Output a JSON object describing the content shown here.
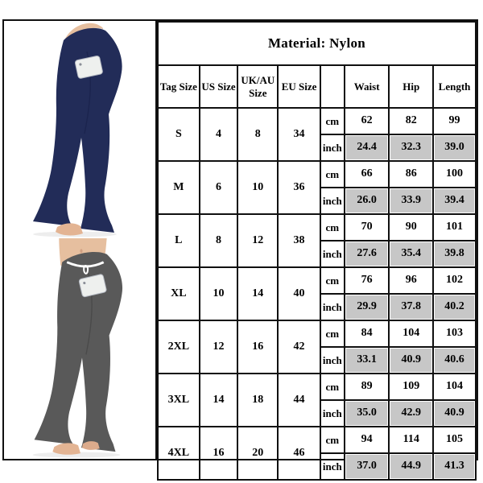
{
  "size_chart": {
    "material_label": "Material: Nylon",
    "columns": [
      "Tag Size",
      "US Size",
      "UK/AU Size",
      "EU Size",
      "",
      "Waist",
      "Hip",
      "Length"
    ],
    "unit_labels": [
      "cm",
      "inch"
    ],
    "rows": [
      {
        "tag": "S",
        "us": "4",
        "uk_au": "8",
        "eu": "34",
        "cm": {
          "waist": "62",
          "hip": "82",
          "length": "99"
        },
        "inch": {
          "waist": "24.4",
          "hip": "32.3",
          "length": "39.0"
        }
      },
      {
        "tag": "M",
        "us": "6",
        "uk_au": "10",
        "eu": "36",
        "cm": {
          "waist": "66",
          "hip": "86",
          "length": "100"
        },
        "inch": {
          "waist": "26.0",
          "hip": "33.9",
          "length": "39.4"
        }
      },
      {
        "tag": "L",
        "us": "8",
        "uk_au": "12",
        "eu": "38",
        "cm": {
          "waist": "70",
          "hip": "90",
          "length": "101"
        },
        "inch": {
          "waist": "27.6",
          "hip": "35.4",
          "length": "39.8"
        }
      },
      {
        "tag": "XL",
        "us": "10",
        "uk_au": "14",
        "eu": "40",
        "cm": {
          "waist": "76",
          "hip": "96",
          "length": "102"
        },
        "inch": {
          "waist": "29.9",
          "hip": "37.8",
          "length": "40.2"
        }
      },
      {
        "tag": "2XL",
        "us": "12",
        "uk_au": "16",
        "eu": "42",
        "cm": {
          "waist": "84",
          "hip": "104",
          "length": "103"
        },
        "inch": {
          "waist": "33.1",
          "hip": "40.9",
          "length": "40.6"
        }
      },
      {
        "tag": "3XL",
        "us": "14",
        "uk_au": "18",
        "eu": "44",
        "cm": {
          "waist": "89",
          "hip": "109",
          "length": "104"
        },
        "inch": {
          "waist": "35.0",
          "hip": "42.9",
          "length": "40.9"
        }
      },
      {
        "tag": "4XL",
        "us": "16",
        "uk_au": "20",
        "eu": "46",
        "cm": {
          "waist": "94",
          "hip": "114",
          "length": "105"
        },
        "inch": {
          "waist": "37.0",
          "hip": "44.9",
          "length": "41.3"
        }
      }
    ]
  },
  "product_photos": [
    {
      "name": "navy-flare-pants-photo",
      "pants_color": "#222c58"
    },
    {
      "name": "gray-flare-pants-photo",
      "pants_color": "#595959"
    }
  ],
  "colors": {
    "table_border": "#101010",
    "inch_cell_background": "#c7c7c7",
    "skin": "#e6bf9f",
    "phone": "#eef0ee",
    "drawstring": "#ffffff"
  }
}
